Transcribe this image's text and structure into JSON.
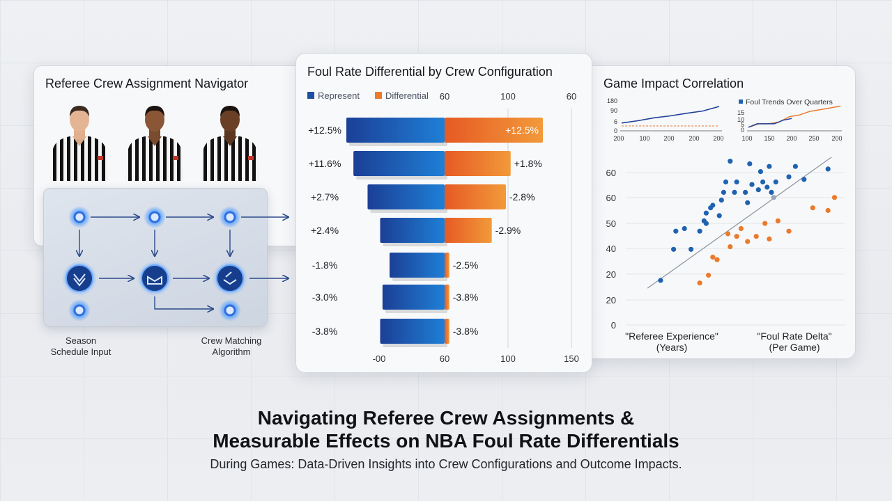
{
  "left_panel": {
    "title": "Referee Crew Assignment Navigator",
    "flow_labels": [
      "Season\nSchedule Input",
      "Crew Matching\nAlgorithm"
    ]
  },
  "center_panel": {
    "title": "Foul Rate Differential by Crew Configuration",
    "legend": [
      {
        "label": "Represent",
        "color": "#1f4fa3"
      },
      {
        "label": "Differential",
        "color": "#ea7a2c"
      }
    ],
    "top_ticks": [
      "60",
      "100",
      "60"
    ],
    "bottom_ticks": [
      "-00",
      "60",
      "100",
      "150"
    ]
  },
  "right_panel": {
    "title": "Game Impact Correlation",
    "mini_legend": "Foul Trends Over Quarters",
    "x_label": "\"Referee Experience\"\n(Years)",
    "y_label": "\"Foul Rate Delta\"\n(Per Game)"
  },
  "headline": {
    "line1": "Navigating Referee Crew Assignments &",
    "line2": "Measurable Effects on NBA Foul Rate Differentials",
    "subtitle": "During Games: Data-Driven Insights into Crew Configurations and Outcome Impacts."
  },
  "chart_data": [
    {
      "type": "bar",
      "title": "Foul Rate Differential by Crew Configuration",
      "categories": [
        "+12.5%",
        "+11.6%",
        "+2.7%",
        "+2.4%",
        "-1.8%",
        "-3.0%",
        "-3.8%"
      ],
      "series": [
        {
          "name": "Represent",
          "values": [
            12.5,
            11.6,
            9.8,
            8.2,
            7.0,
            7.9,
            8.2
          ],
          "color": "#1f4fa3"
        },
        {
          "name": "Differential",
          "values": [
            12.5,
            8.4,
            7.8,
            6.0,
            0.6,
            0.6,
            0.6
          ],
          "color": "#ea7a2c"
        }
      ],
      "right_labels": [
        "+12.5%",
        "+1.8%",
        "-2.8%",
        "-2.9%",
        "-2.5%",
        "-3.8%",
        "-3.8%"
      ]
    },
    {
      "type": "line",
      "x_ticks": [
        "200",
        "100",
        "200",
        "200",
        "200"
      ],
      "y_ticks": [
        "180",
        "90",
        "6",
        "0"
      ],
      "series": [
        {
          "values": [
            48,
            62,
            80,
            92,
            108,
            122,
            150
          ],
          "color": "#1f3f9a"
        },
        {
          "values": [
            30,
            30,
            30,
            30,
            30,
            30,
            30
          ],
          "color": "#ea7a2c",
          "dashed": true
        }
      ],
      "ylim": [
        0,
        180
      ]
    },
    {
      "type": "line",
      "legend": "Foul Trends Over Quarters",
      "x_ticks": [
        "100",
        "150",
        "200",
        "250",
        "200"
      ],
      "y_ticks": [
        "15",
        "10",
        "5",
        "0"
      ],
      "series": [
        {
          "values": [
            2,
            4,
            4,
            5,
            8,
            9,
            11,
            12,
            13,
            14
          ],
          "color": "#ea7a2c"
        },
        {
          "values": [
            2,
            4,
            4,
            4,
            6,
            7
          ],
          "color": "#1f3f9a"
        }
      ],
      "ylim": [
        0,
        15
      ]
    },
    {
      "type": "scatter",
      "title": "Game Impact Correlation",
      "xlabel": "\"Referee Experience\" (Years)",
      "ylabel": "\"Foul Rate Delta\" (Per Game)",
      "y_ticks": [
        "60",
        "60",
        "50",
        "40",
        "20",
        "20",
        "0"
      ],
      "ylim": [
        0,
        65
      ],
      "xlim": [
        0,
        100
      ],
      "series": [
        {
          "name": "blue",
          "color": "#1f63b0",
          "points": [
            [
              16,
              18
            ],
            [
              22,
              30
            ],
            [
              23,
              37
            ],
            [
              27,
              38
            ],
            [
              30,
              30
            ],
            [
              34,
              37
            ],
            [
              36,
              41
            ],
            [
              37,
              40
            ],
            [
              37,
              44
            ],
            [
              40,
              47
            ],
            [
              39,
              46
            ],
            [
              43,
              43
            ],
            [
              44,
              49
            ],
            [
              45,
              52
            ],
            [
              46,
              56
            ],
            [
              48,
              64
            ],
            [
              50,
              52
            ],
            [
              51,
              56
            ],
            [
              55,
              52
            ],
            [
              56,
              48
            ],
            [
              57,
              63
            ],
            [
              58,
              55
            ],
            [
              61,
              53
            ],
            [
              62,
              60
            ],
            [
              63,
              56
            ],
            [
              65,
              54
            ],
            [
              66,
              62
            ],
            [
              67,
              52
            ],
            [
              69,
              56
            ],
            [
              73,
              68
            ],
            [
              75,
              58
            ],
            [
              78,
              62
            ],
            [
              82,
              57
            ],
            [
              93,
              61
            ]
          ]
        },
        {
          "name": "orange",
          "color": "#ea7a2c",
          "points": [
            [
              34,
              17
            ],
            [
              38,
              20
            ],
            [
              40,
              27
            ],
            [
              42,
              26
            ],
            [
              47,
              36
            ],
            [
              48,
              31
            ],
            [
              51,
              35
            ],
            [
              53,
              38
            ],
            [
              56,
              33
            ],
            [
              60,
              35
            ],
            [
              64,
              40
            ],
            [
              66,
              34
            ],
            [
              70,
              41
            ],
            [
              75,
              37
            ],
            [
              86,
              46
            ],
            [
              93,
              45
            ],
            [
              96,
              50
            ]
          ]
        },
        {
          "name": "grey",
          "color": "#9aa7b8",
          "points": [
            [
              68,
              50
            ]
          ]
        }
      ],
      "trend_line": [
        [
          10,
          15
        ],
        [
          97,
          67
        ]
      ]
    }
  ]
}
